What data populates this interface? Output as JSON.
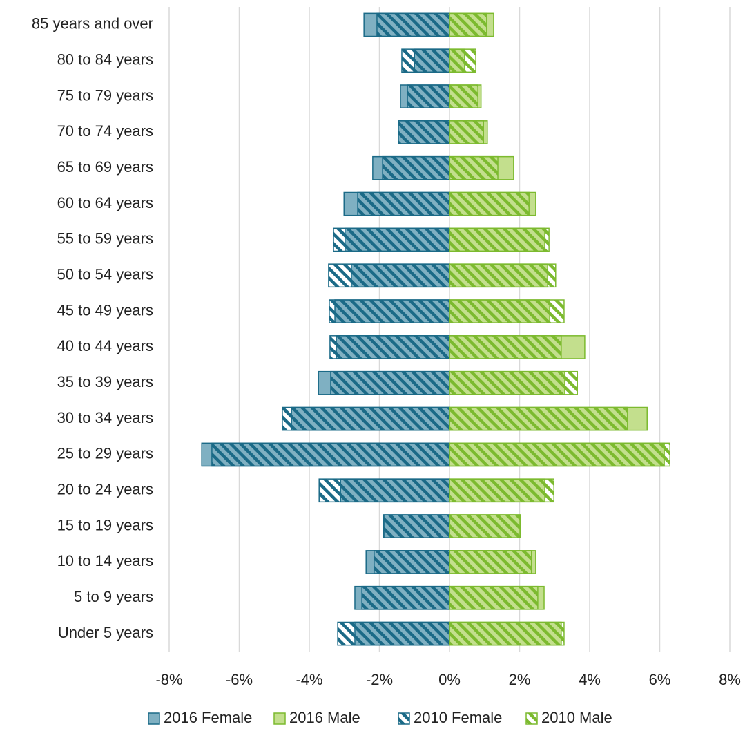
{
  "chart_data": {
    "type": "population_pyramid",
    "categories": [
      "85 years and over",
      "80 to 84 years",
      "75 to 79 years",
      "70 to 74 years",
      "65 to 69 years",
      "60 to 64 years",
      "55 to 59 years",
      "50 to 54 years",
      "45 to 49 years",
      "40 to 44 years",
      "35 to 39 years",
      "30 to 34 years",
      "25 to 29 years",
      "20 to 24 years",
      "15 to 19 years",
      "10 to 14 years",
      "5 to 9 years",
      "Under 5 years"
    ],
    "series": [
      {
        "name": "2016 Female",
        "color": "#7fb0c2",
        "pattern": "solid",
        "values": [
          -2.44,
          -1.0,
          -1.4,
          -1.46,
          -2.19,
          -3.01,
          -2.98,
          -2.8,
          -3.27,
          -3.23,
          -3.74,
          -4.51,
          -7.07,
          -3.11,
          -1.87,
          -2.38,
          -2.7,
          -2.7
        ]
      },
      {
        "name": "2016 Male",
        "color": "#c3df8d",
        "pattern": "solid",
        "values": [
          1.26,
          0.43,
          0.9,
          1.08,
          1.83,
          2.46,
          2.72,
          2.8,
          2.86,
          3.86,
          3.29,
          5.64,
          6.13,
          2.72,
          2.03,
          2.46,
          2.7,
          3.19
        ]
      },
      {
        "name": "2010 Female",
        "color": "#1b6a87",
        "pattern": "hatched",
        "values": [
          -2.07,
          -1.36,
          -1.2,
          -1.46,
          -1.91,
          -2.62,
          -3.31,
          -3.45,
          -3.43,
          -3.41,
          -3.39,
          -4.77,
          -6.78,
          -3.72,
          -1.89,
          -2.15,
          -2.5,
          -3.19
        ]
      },
      {
        "name": "2010 Male",
        "color": "#7cba2f",
        "pattern": "hatched",
        "values": [
          1.06,
          0.75,
          0.81,
          0.97,
          1.38,
          2.27,
          2.84,
          3.03,
          3.27,
          3.19,
          3.65,
          5.08,
          6.29,
          2.98,
          2.01,
          2.34,
          2.52,
          3.27
        ]
      }
    ],
    "xlim": [
      -8,
      8
    ],
    "xticks": [
      {
        "value": -8,
        "label": "-8%"
      },
      {
        "value": -6,
        "label": "-6%"
      },
      {
        "value": -4,
        "label": "-4%"
      },
      {
        "value": -2,
        "label": "-2%"
      },
      {
        "value": 0,
        "label": "0%"
      },
      {
        "value": 2,
        "label": "2%"
      },
      {
        "value": 4,
        "label": "4%"
      },
      {
        "value": 6,
        "label": "6%"
      },
      {
        "value": 8,
        "label": "8%"
      }
    ],
    "grid": true,
    "legend": "bottom"
  }
}
